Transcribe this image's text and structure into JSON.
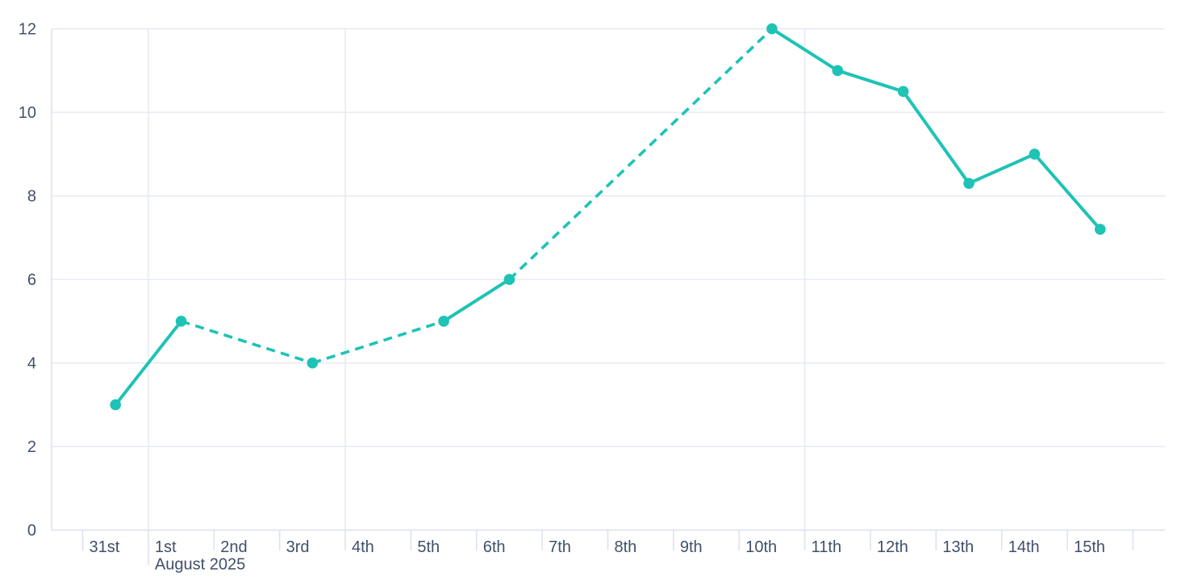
{
  "chart_data": {
    "type": "line",
    "title": "",
    "xlabel": "",
    "ylabel": "",
    "x_axis": {
      "categories": [
        "31st",
        "1st",
        "2nd",
        "3rd",
        "4th",
        "5th",
        "6th",
        "7th",
        "8th",
        "9th",
        "10th",
        "11th",
        "12th",
        "13th",
        "14th",
        "15th"
      ],
      "month_label": "August 2025",
      "month_label_under": "1st",
      "week_gridlines_before": [
        "1st",
        "4th",
        "11th"
      ]
    },
    "y_axis": {
      "ticks": [
        0,
        2,
        4,
        6,
        8,
        10,
        12
      ],
      "range": [
        0,
        12
      ]
    },
    "series": [
      {
        "name": "value",
        "points": [
          {
            "x": "31st",
            "y": 3
          },
          {
            "x": "1st",
            "y": 5
          },
          {
            "x": "3rd",
            "y": 4
          },
          {
            "x": "5th",
            "y": 5
          },
          {
            "x": "6th",
            "y": 6
          },
          {
            "x": "10th",
            "y": 12
          },
          {
            "x": "11th",
            "y": 11
          },
          {
            "x": "12th",
            "y": 10.5
          },
          {
            "x": "13th",
            "y": 8.3
          },
          {
            "x": "14th",
            "y": 9
          },
          {
            "x": "15th",
            "y": 7.2
          }
        ],
        "segments": [
          {
            "from": "31st",
            "to": "1st",
            "style": "solid"
          },
          {
            "from": "1st",
            "to": "3rd",
            "style": "dashed"
          },
          {
            "from": "3rd",
            "to": "5th",
            "style": "dashed"
          },
          {
            "from": "5th",
            "to": "6th",
            "style": "solid"
          },
          {
            "from": "6th",
            "to": "10th",
            "style": "dashed"
          },
          {
            "from": "10th",
            "to": "11th",
            "style": "solid"
          },
          {
            "from": "11th",
            "to": "12th",
            "style": "solid"
          },
          {
            "from": "12th",
            "to": "13th",
            "style": "solid"
          },
          {
            "from": "13th",
            "to": "14th",
            "style": "solid"
          },
          {
            "from": "14th",
            "to": "15th",
            "style": "solid"
          }
        ]
      }
    ],
    "colors": {
      "line": "#1ec3b5",
      "grid": "#e4e8f2",
      "axis": "#dde2ef",
      "label": "#40506b",
      "background": "#ffffff"
    },
    "legend": null,
    "grid": "on"
  }
}
